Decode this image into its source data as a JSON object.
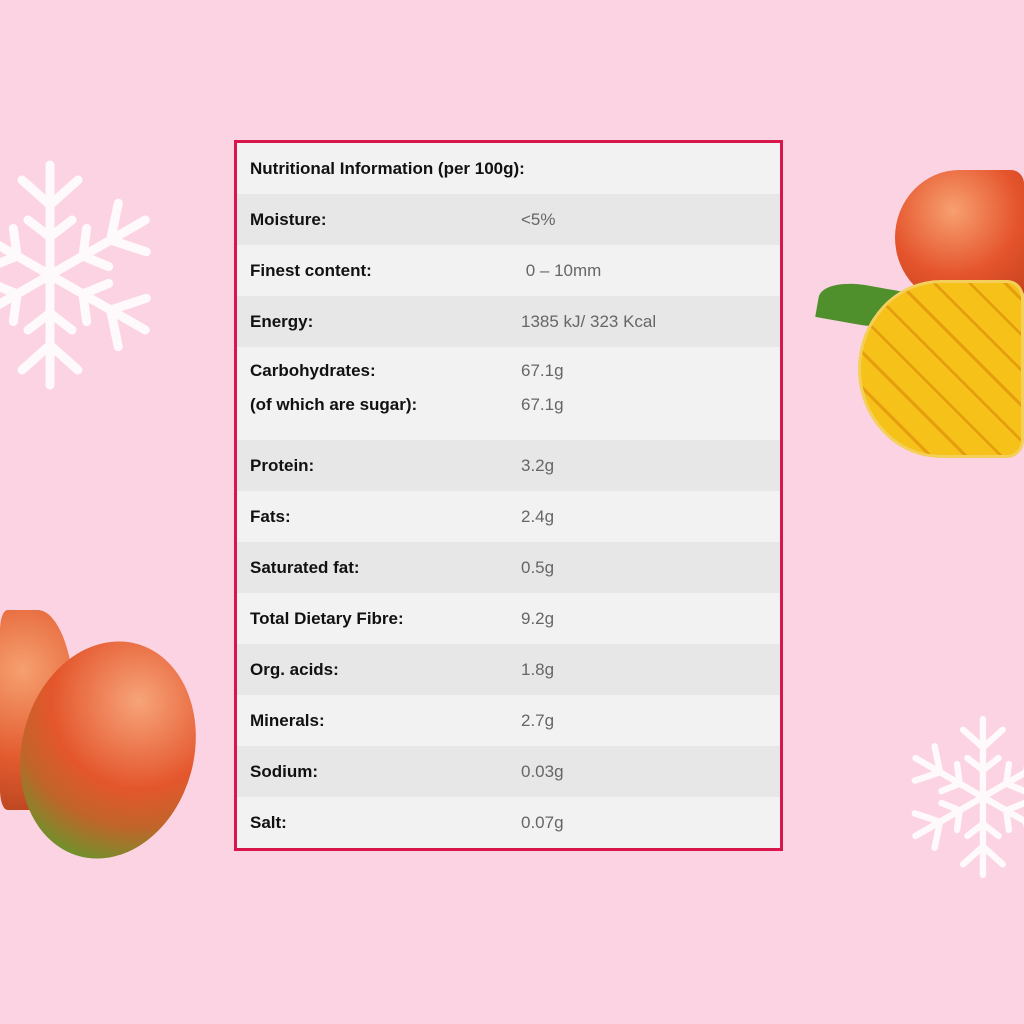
{
  "table": {
    "title": "Nutritional Information (per 100g):",
    "rows": [
      {
        "label": "Moisture:",
        "value": "<5%"
      },
      {
        "label": "Finest content:",
        "value": " 0 – 10mm"
      },
      {
        "label": "Energy:",
        "value": "1385 kJ/ 323 Kcal"
      },
      {
        "label": "Carbohydrates:",
        "value": "67.1g",
        "sub_label": "(of which are sugar):",
        "sub_value": "67.1g"
      },
      {
        "label": "Protein:",
        "value": "3.2g"
      },
      {
        "label": "Fats:",
        "value": "2.4g"
      },
      {
        "label": "Saturated fat:",
        "value": "0.5g"
      },
      {
        "label": "Total Dietary Fibre:",
        "value": "9.2g"
      },
      {
        "label": "Org. acids:",
        "value": "1.8g"
      },
      {
        "label": "Minerals:",
        "value": "2.7g"
      },
      {
        "label": "Sodium:",
        "value": "0.03g"
      },
      {
        "label": "Salt:",
        "value": "0.07g"
      }
    ]
  },
  "colors": {
    "background": "#fcd3e3",
    "border": "#d8164b"
  }
}
